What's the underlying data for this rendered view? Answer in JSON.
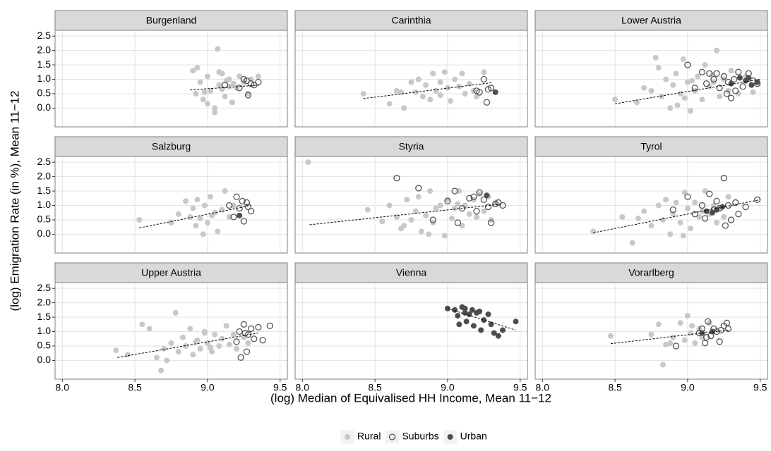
{
  "chart_data": {
    "type": "scatter",
    "x_label": "(log) Median of Equivalised HH Income, Mean 11−12",
    "y_label": "(log) Emigration Rate (in %), Mean 11−12",
    "xlim": [
      7.95,
      9.55
    ],
    "ylim": [
      -0.65,
      2.7
    ],
    "xticks": [
      {
        "value": 8,
        "label": "8.0"
      },
      8.5,
      {
        "value": 9,
        "label": "9.0"
      },
      9.5
    ],
    "yticks": [
      {
        "value": 0,
        "label": "0.0"
      },
      0.5,
      {
        "value": 1,
        "label": "1.0"
      },
      1.5,
      {
        "value": 2,
        "label": "2.0"
      },
      2.5
    ],
    "grid": true,
    "legend": "bottom",
    "series": [
      {
        "name": "Rural",
        "color": "#c8c8c8",
        "marker": "filled"
      },
      {
        "name": "Suburbs",
        "color": "#555555",
        "marker": "open"
      },
      {
        "name": "Urban",
        "color": "#4d4d4d",
        "marker": "filled"
      }
    ],
    "trend_color": "#000000",
    "facets": [
      {
        "title": "Burgenland",
        "series": [
          {
            "x": [
              8.9,
              8.92,
              8.95,
              8.97,
              9.0,
              9.02,
              9.05,
              9.07,
              9.08,
              9.1,
              9.12,
              9.13,
              9.15,
              9.17,
              9.2,
              9.22,
              9.25,
              9.28,
              9.3,
              9.05,
              9.0,
              8.93,
              9.1,
              9.18,
              9.35,
              9.08,
              8.98,
              9.15
            ],
            "y": [
              1.3,
              0.5,
              0.9,
              0.3,
              1.1,
              0.6,
              0.0,
              2.05,
              0.8,
              1.2,
              0.4,
              0.95,
              1.0,
              0.2,
              0.7,
              1.1,
              0.9,
              0.5,
              1.0,
              -0.15,
              0.15,
              1.4,
              0.65,
              0.85,
              1.1,
              1.25,
              0.55,
              0.75
            ]
          },
          {
            "x": [
              9.12,
              9.22,
              9.25,
              9.28,
              9.3,
              9.32,
              9.35,
              9.27
            ],
            "y": [
              0.8,
              0.7,
              1.0,
              0.45,
              0.85,
              0.8,
              0.9,
              0.95
            ]
          },
          {
            "x": [],
            "y": []
          }
        ],
        "trend": {
          "x": [
            8.88,
            9.36
          ],
          "y": [
            0.63,
            0.8
          ]
        }
      },
      {
        "title": "Carinthia",
        "series": [
          {
            "x": [
              8.42,
              8.6,
              8.65,
              8.7,
              8.75,
              8.78,
              8.8,
              8.83,
              8.85,
              8.88,
              8.9,
              8.92,
              8.95,
              8.98,
              9.0,
              9.02,
              9.05,
              9.08,
              9.1,
              9.12,
              9.15,
              9.18,
              9.2,
              9.25,
              8.68,
              8.95
            ],
            "y": [
              0.5,
              0.15,
              0.6,
              0.0,
              0.9,
              0.55,
              1.0,
              0.4,
              0.8,
              0.3,
              1.2,
              0.6,
              0.9,
              1.25,
              0.7,
              0.25,
              1.0,
              0.75,
              1.2,
              0.5,
              0.85,
              0.6,
              0.4,
              1.25,
              0.55,
              0.45
            ]
          },
          {
            "x": [
              9.22,
              9.25,
              9.27,
              9.28,
              9.2,
              9.3
            ],
            "y": [
              0.55,
              1.0,
              0.2,
              0.65,
              0.6,
              0.7
            ]
          },
          {
            "x": [
              9.33
            ],
            "y": [
              0.55
            ]
          }
        ],
        "trend": {
          "x": [
            8.42,
            9.3
          ],
          "y": [
            0.33,
            0.88
          ]
        }
      },
      {
        "title": "Lower Austria",
        "series": [
          {
            "x": [
              8.5,
              8.65,
              8.7,
              8.75,
              8.8,
              8.82,
              8.85,
              8.88,
              8.9,
              8.92,
              8.95,
              8.97,
              9.0,
              9.02,
              9.05,
              9.07,
              9.1,
              9.12,
              9.15,
              9.18,
              9.2,
              9.22,
              9.25,
              9.28,
              9.3,
              9.35,
              9.4,
              9.45,
              8.78,
              8.93,
              9.17,
              9.03,
              8.98
            ],
            "y": [
              0.3,
              0.2,
              0.7,
              0.6,
              1.4,
              0.4,
              1.0,
              0.0,
              0.8,
              1.2,
              0.5,
              1.7,
              0.9,
              -0.1,
              0.6,
              1.1,
              0.3,
              1.5,
              0.75,
              0.9,
              2.0,
              0.4,
              1.0,
              0.6,
              1.3,
              0.5,
              1.1,
              0.55,
              1.75,
              0.1,
              1.15,
              0.95,
              0.35
            ]
          },
          {
            "x": [
              9.0,
              9.05,
              9.1,
              9.13,
              9.15,
              9.18,
              9.2,
              9.22,
              9.25,
              9.28,
              9.3,
              9.32,
              9.35,
              9.38,
              9.42,
              9.45,
              9.48,
              9.27,
              9.33
            ],
            "y": [
              1.5,
              0.7,
              1.25,
              0.85,
              1.2,
              1.0,
              1.2,
              0.7,
              1.1,
              0.9,
              0.35,
              1.0,
              1.25,
              0.75,
              1.2,
              0.95,
              0.85,
              0.5,
              0.6
            ]
          },
          {
            "x": [
              9.3,
              9.36,
              9.4,
              9.44,
              9.48,
              9.42
            ],
            "y": [
              0.85,
              1.05,
              0.95,
              0.8,
              0.9,
              1.05
            ]
          }
        ],
        "trend": {
          "x": [
            8.5,
            9.5
          ],
          "y": [
            0.15,
            1.0
          ]
        }
      },
      {
        "title": "Salzburg",
        "series": [
          {
            "x": [
              8.53,
              8.75,
              8.8,
              8.85,
              8.88,
              8.9,
              8.92,
              8.95,
              8.98,
              9.0,
              9.02,
              9.05,
              9.07,
              9.1,
              9.12,
              9.15,
              9.18,
              8.97,
              9.03,
              8.93
            ],
            "y": [
              0.5,
              0.4,
              0.7,
              1.15,
              0.6,
              0.9,
              0.3,
              0.55,
              1.0,
              0.4,
              1.3,
              0.75,
              0.1,
              0.85,
              1.5,
              0.6,
              1.0,
              0.0,
              0.65,
              1.2
            ]
          },
          {
            "x": [
              9.15,
              9.18,
              9.2,
              9.22,
              9.24,
              9.25,
              9.27,
              9.28,
              9.3
            ],
            "y": [
              1.0,
              0.6,
              1.3,
              0.9,
              1.15,
              0.45,
              1.1,
              0.95,
              0.8
            ]
          },
          {
            "x": [
              9.22
            ],
            "y": [
              0.65
            ]
          }
        ],
        "trend": {
          "x": [
            8.53,
            9.3
          ],
          "y": [
            0.22,
            1.0
          ]
        }
      },
      {
        "title": "Styria",
        "series": [
          {
            "x": [
              8.04,
              8.45,
              8.55,
              8.6,
              8.65,
              8.7,
              8.72,
              8.75,
              8.78,
              8.8,
              8.82,
              8.85,
              8.88,
              8.9,
              8.92,
              8.95,
              8.98,
              9.0,
              9.03,
              9.05,
              9.08,
              9.1,
              9.12,
              9.15,
              9.18,
              9.2,
              9.22,
              9.25,
              9.28,
              9.3,
              9.33,
              8.68,
              8.87,
              9.07
            ],
            "y": [
              2.5,
              0.85,
              0.45,
              1.0,
              0.6,
              0.3,
              1.2,
              0.5,
              0.8,
              1.3,
              0.1,
              0.65,
              1.5,
              0.4,
              0.9,
              1.0,
              -0.05,
              1.2,
              0.55,
              0.9,
              1.5,
              0.3,
              1.0,
              0.7,
              1.2,
              0.6,
              1.4,
              0.8,
              1.3,
              0.5,
              1.1,
              0.2,
              0.0,
              1.05
            ]
          },
          {
            "x": [
              8.65,
              8.8,
              8.9,
              9.0,
              9.05,
              9.1,
              9.15,
              9.18,
              9.2,
              9.22,
              9.25,
              9.28,
              9.3,
              9.33,
              9.35,
              9.38,
              9.07
            ],
            "y": [
              1.95,
              1.6,
              0.5,
              1.15,
              1.5,
              0.9,
              1.25,
              1.3,
              0.8,
              1.45,
              1.2,
              0.95,
              0.4,
              1.05,
              1.1,
              1.0,
              0.4
            ]
          },
          {
            "x": [
              9.27
            ],
            "y": [
              1.35
            ]
          }
        ],
        "trend": {
          "x": [
            8.05,
            9.38
          ],
          "y": [
            0.33,
            1.05
          ]
        }
      },
      {
        "title": "Tyrol",
        "series": [
          {
            "x": [
              8.35,
              8.55,
              8.62,
              8.7,
              8.75,
              8.8,
              8.83,
              8.85,
              8.88,
              8.9,
              8.92,
              8.95,
              8.98,
              9.0,
              9.02,
              9.05,
              9.08,
              9.1,
              9.12,
              9.15,
              9.18,
              9.2,
              9.22,
              9.25,
              9.28,
              8.97,
              8.66
            ],
            "y": [
              0.1,
              0.6,
              -0.3,
              0.8,
              0.3,
              1.0,
              0.5,
              1.2,
              0.0,
              0.7,
              1.1,
              0.4,
              1.45,
              0.9,
              0.2,
              1.1,
              0.6,
              0.8,
              1.5,
              0.7,
              1.0,
              0.4,
              0.9,
              0.6,
              1.3,
              -0.05,
              0.55
            ]
          },
          {
            "x": [
              8.9,
              9.0,
              9.05,
              9.1,
              9.12,
              9.15,
              9.18,
              9.2,
              9.22,
              9.25,
              9.28,
              9.3,
              9.33,
              9.35,
              9.4,
              9.48,
              9.26
            ],
            "y": [
              0.85,
              1.3,
              0.7,
              1.0,
              0.55,
              1.4,
              0.85,
              1.15,
              0.9,
              1.95,
              1.0,
              0.5,
              1.1,
              0.7,
              0.95,
              1.2,
              0.3
            ]
          },
          {
            "x": [
              9.13,
              9.17,
              9.2,
              9.24
            ],
            "y": [
              0.8,
              0.75,
              0.85,
              0.95
            ]
          }
        ],
        "trend": {
          "x": [
            8.35,
            9.5
          ],
          "y": [
            0.05,
            1.2
          ]
        }
      },
      {
        "title": "Upper Austria",
        "series": [
          {
            "x": [
              8.37,
              8.45,
              8.55,
              8.6,
              8.65,
              8.68,
              8.7,
              8.75,
              8.78,
              8.8,
              8.83,
              8.85,
              8.88,
              8.9,
              8.93,
              8.95,
              8.98,
              9.0,
              9.03,
              9.05,
              9.08,
              9.1,
              9.13,
              9.15,
              9.18,
              9.2,
              9.25,
              9.28,
              8.72,
              8.92,
              9.02,
              8.98
            ],
            "y": [
              0.35,
              0.2,
              1.25,
              1.1,
              0.1,
              -0.35,
              0.4,
              0.6,
              1.65,
              0.3,
              0.8,
              0.5,
              1.1,
              0.2,
              0.7,
              0.4,
              1.0,
              0.6,
              0.3,
              0.9,
              0.5,
              0.75,
              1.2,
              0.55,
              0.9,
              0.4,
              0.8,
              0.6,
              0.0,
              0.65,
              0.45,
              0.95
            ]
          },
          {
            "x": [
              9.2,
              9.22,
              9.25,
              9.27,
              9.28,
              9.3,
              9.32,
              9.35,
              9.38,
              9.43,
              9.23,
              9.26
            ],
            "y": [
              0.65,
              1.0,
              1.25,
              0.3,
              0.9,
              1.1,
              0.75,
              1.15,
              0.7,
              1.2,
              0.1,
              0.95
            ]
          },
          {
            "x": [],
            "y": []
          }
        ],
        "trend": {
          "x": [
            8.38,
            9.35
          ],
          "y": [
            0.1,
            0.95
          ]
        }
      },
      {
        "title": "Vienna",
        "series": [
          {
            "x": [],
            "y": []
          },
          {
            "x": [],
            "y": []
          },
          {
            "x": [
              9.0,
              9.05,
              9.07,
              9.1,
              9.12,
              9.13,
              9.15,
              9.17,
              9.18,
              9.2,
              9.22,
              9.23,
              9.25,
              9.28,
              9.3,
              9.32,
              9.35,
              9.47,
              9.12,
              9.08,
              9.38
            ],
            "y": [
              1.8,
              1.75,
              1.55,
              1.85,
              1.8,
              1.35,
              1.6,
              1.75,
              1.2,
              1.65,
              1.7,
              1.05,
              1.4,
              1.6,
              1.25,
              0.95,
              0.85,
              1.35,
              1.65,
              1.25,
              1.05
            ]
          }
        ],
        "trend": {
          "x": [
            9.0,
            9.47
          ],
          "y": [
            1.8,
            1.05
          ]
        }
      },
      {
        "title": "Vorarlberg",
        "series": [
          {
            "x": [
              8.47,
              8.75,
              8.8,
              8.83,
              8.85,
              8.9,
              8.95,
              8.98,
              9.0,
              9.02,
              9.05,
              9.08,
              9.1,
              8.88,
              9.15,
              9.03
            ],
            "y": [
              0.85,
              0.9,
              1.25,
              -0.15,
              0.55,
              0.8,
              1.3,
              0.7,
              1.55,
              0.95,
              0.6,
              1.1,
              0.8,
              0.6,
              1.3,
              1.2
            ]
          },
          {
            "x": [
              8.92,
              9.08,
              9.1,
              9.12,
              9.14,
              9.16,
              9.18,
              9.2,
              9.22,
              9.25,
              9.27,
              9.28,
              9.13,
              9.23
            ],
            "y": [
              0.5,
              0.95,
              1.1,
              0.6,
              1.35,
              0.85,
              1.1,
              1.0,
              0.65,
              1.2,
              1.3,
              1.1,
              0.8,
              1.05
            ]
          },
          {
            "x": [
              9.1,
              9.17
            ],
            "y": [
              0.95,
              1.0
            ]
          }
        ],
        "trend": {
          "x": [
            8.47,
            9.28
          ],
          "y": [
            0.58,
            1.05
          ]
        }
      }
    ]
  }
}
